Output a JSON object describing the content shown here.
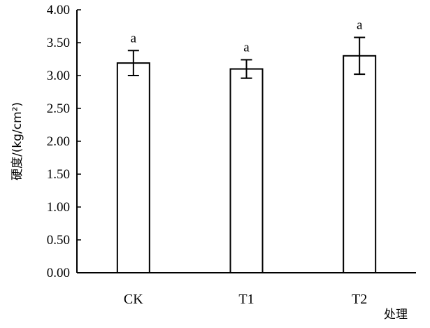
{
  "chart_data": {
    "type": "bar",
    "categories": [
      "CK",
      "T1",
      "T2"
    ],
    "values": [
      3.19,
      3.1,
      3.3
    ],
    "errors": [
      0.19,
      0.14,
      0.28
    ],
    "significance": [
      "a",
      "a",
      "a"
    ],
    "ylabel": "硬度/(kg/cm²)",
    "xlabel": "处理",
    "ylim": [
      0,
      4
    ],
    "yticks": [
      "0.00",
      "0.50",
      "1.00",
      "1.50",
      "2.00",
      "2.50",
      "3.00",
      "3.50",
      "4.00"
    ],
    "grid": false,
    "legend": "none",
    "bar_fill": "#ffffff",
    "bar_stroke": "#000000"
  }
}
